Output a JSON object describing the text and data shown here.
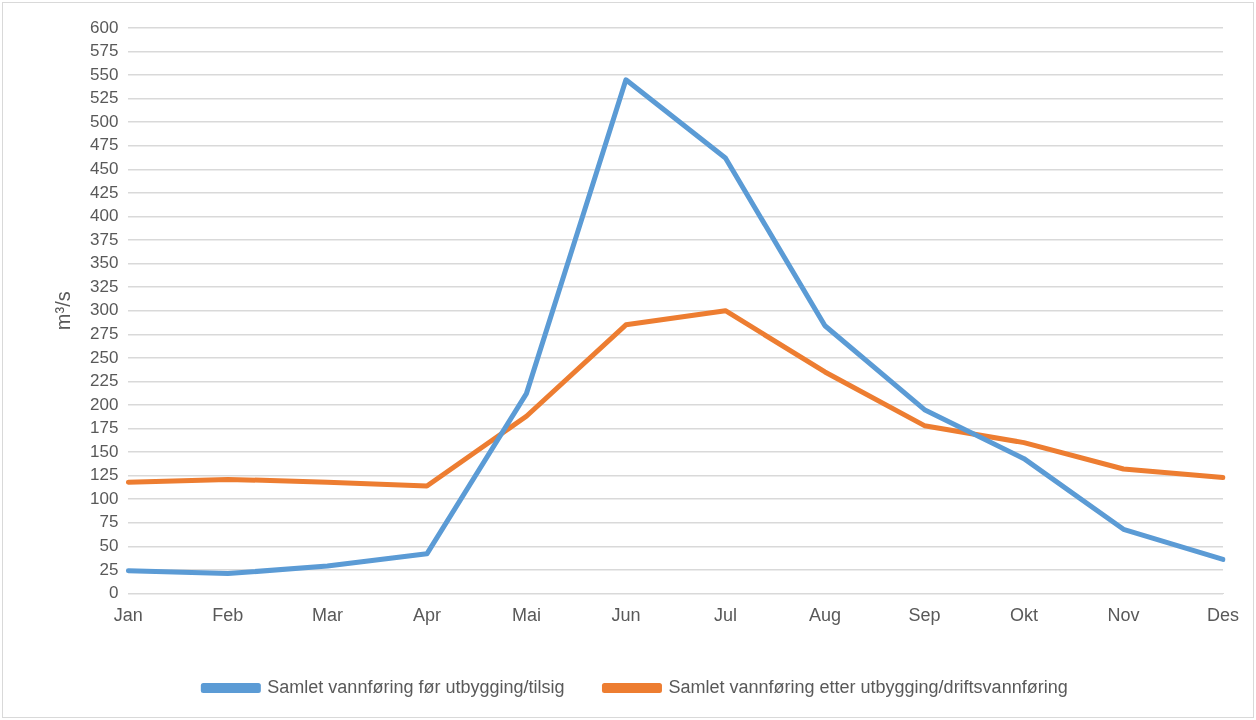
{
  "chart_data": {
    "type": "line",
    "ylabel": "m³/s",
    "categories": [
      "Jan",
      "Feb",
      "Mar",
      "Apr",
      "Mai",
      "Jun",
      "Jul",
      "Aug",
      "Sep",
      "Okt",
      "Nov",
      "Des"
    ],
    "series": [
      {
        "name": "Samlet vannføring før utbygging/tilsig",
        "color": "#5b9bd5",
        "values": [
          24,
          21,
          29,
          42,
          212,
          545,
          462,
          284,
          195,
          143,
          68,
          36
        ]
      },
      {
        "name": "Samlet vannføring etter utbygging/driftsvannføring",
        "color": "#ed7d31",
        "values": [
          118,
          121,
          118,
          114,
          188,
          285,
          300,
          235,
          178,
          160,
          132,
          123
        ]
      }
    ],
    "ylim": [
      0,
      600
    ],
    "yticks": [
      0,
      25,
      50,
      75,
      100,
      125,
      150,
      175,
      200,
      225,
      250,
      275,
      300,
      325,
      350,
      375,
      400,
      425,
      450,
      475,
      500,
      525,
      550,
      575,
      600
    ],
    "grid": "y",
    "legend": "bottom",
    "marker": "none",
    "line_style": "solid"
  }
}
